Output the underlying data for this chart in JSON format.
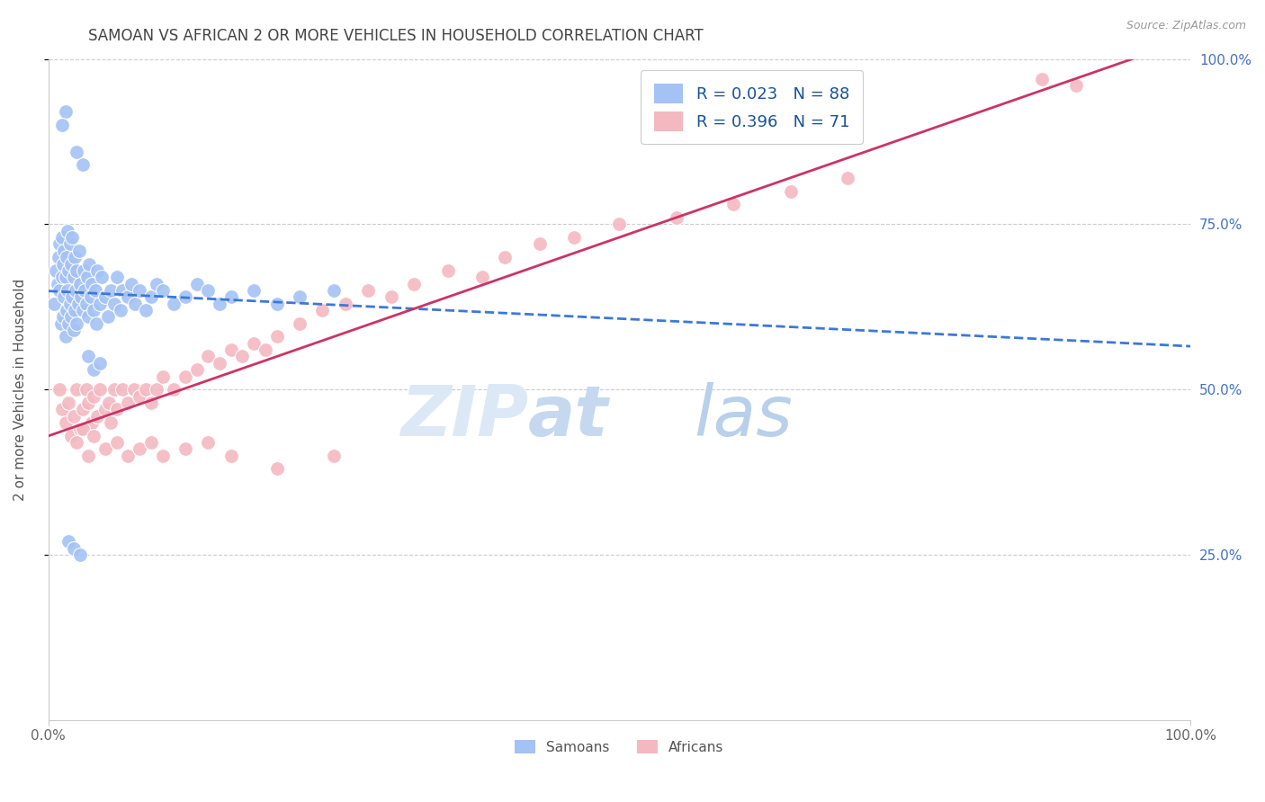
{
  "title": "SAMOAN VS AFRICAN 2 OR MORE VEHICLES IN HOUSEHOLD CORRELATION CHART",
  "source": "Source: ZipAtlas.com",
  "ylabel": "2 or more Vehicles in Household",
  "r_samoan": "0.023",
  "n_samoan": "88",
  "r_african": "0.396",
  "n_african": "71",
  "blue_color": "#a4c2f4",
  "pink_color": "#f4b8c1",
  "blue_line_color": "#3c78d8",
  "pink_line_color": "#cc3366",
  "legend_text_color": "#1a5296",
  "title_color": "#444444",
  "grid_color": "#cccccc",
  "background_color": "#ffffff",
  "xlim": [
    0,
    1
  ],
  "ylim": [
    0,
    1
  ],
  "samoan_x": [
    0.005,
    0.007,
    0.008,
    0.009,
    0.01,
    0.01,
    0.011,
    0.012,
    0.012,
    0.013,
    0.013,
    0.014,
    0.014,
    0.015,
    0.015,
    0.016,
    0.016,
    0.017,
    0.017,
    0.018,
    0.018,
    0.019,
    0.019,
    0.02,
    0.02,
    0.021,
    0.021,
    0.022,
    0.022,
    0.023,
    0.023,
    0.024,
    0.025,
    0.025,
    0.026,
    0.027,
    0.028,
    0.029,
    0.03,
    0.031,
    0.032,
    0.033,
    0.034,
    0.035,
    0.036,
    0.037,
    0.038,
    0.04,
    0.041,
    0.042,
    0.043,
    0.045,
    0.047,
    0.05,
    0.052,
    0.055,
    0.058,
    0.06,
    0.063,
    0.065,
    0.07,
    0.073,
    0.076,
    0.08,
    0.085,
    0.09,
    0.095,
    0.1,
    0.11,
    0.12,
    0.13,
    0.14,
    0.15,
    0.16,
    0.18,
    0.2,
    0.22,
    0.25,
    0.03,
    0.025,
    0.035,
    0.04,
    0.045,
    0.018,
    0.022,
    0.028,
    0.015,
    0.012
  ],
  "samoan_y": [
    0.63,
    0.68,
    0.66,
    0.7,
    0.65,
    0.72,
    0.6,
    0.67,
    0.73,
    0.61,
    0.69,
    0.64,
    0.71,
    0.58,
    0.67,
    0.62,
    0.7,
    0.65,
    0.74,
    0.6,
    0.68,
    0.63,
    0.72,
    0.61,
    0.69,
    0.64,
    0.73,
    0.59,
    0.67,
    0.62,
    0.7,
    0.65,
    0.6,
    0.68,
    0.63,
    0.71,
    0.66,
    0.64,
    0.62,
    0.68,
    0.65,
    0.63,
    0.67,
    0.61,
    0.69,
    0.64,
    0.66,
    0.62,
    0.65,
    0.6,
    0.68,
    0.63,
    0.67,
    0.64,
    0.61,
    0.65,
    0.63,
    0.67,
    0.62,
    0.65,
    0.64,
    0.66,
    0.63,
    0.65,
    0.62,
    0.64,
    0.66,
    0.65,
    0.63,
    0.64,
    0.66,
    0.65,
    0.63,
    0.64,
    0.65,
    0.63,
    0.64,
    0.65,
    0.84,
    0.86,
    0.55,
    0.53,
    0.54,
    0.27,
    0.26,
    0.25,
    0.92,
    0.9
  ],
  "african_x": [
    0.01,
    0.012,
    0.015,
    0.018,
    0.02,
    0.022,
    0.025,
    0.028,
    0.03,
    0.033,
    0.035,
    0.038,
    0.04,
    0.043,
    0.045,
    0.05,
    0.053,
    0.055,
    0.058,
    0.06,
    0.065,
    0.07,
    0.075,
    0.08,
    0.085,
    0.09,
    0.095,
    0.1,
    0.11,
    0.12,
    0.13,
    0.14,
    0.15,
    0.16,
    0.17,
    0.18,
    0.19,
    0.2,
    0.22,
    0.24,
    0.26,
    0.28,
    0.3,
    0.32,
    0.35,
    0.38,
    0.4,
    0.43,
    0.46,
    0.5,
    0.55,
    0.6,
    0.65,
    0.7,
    0.025,
    0.03,
    0.035,
    0.04,
    0.05,
    0.06,
    0.07,
    0.08,
    0.09,
    0.1,
    0.12,
    0.14,
    0.16,
    0.2,
    0.25,
    0.9,
    0.87
  ],
  "african_y": [
    0.5,
    0.47,
    0.45,
    0.48,
    0.43,
    0.46,
    0.5,
    0.44,
    0.47,
    0.5,
    0.48,
    0.45,
    0.49,
    0.46,
    0.5,
    0.47,
    0.48,
    0.45,
    0.5,
    0.47,
    0.5,
    0.48,
    0.5,
    0.49,
    0.5,
    0.48,
    0.5,
    0.52,
    0.5,
    0.52,
    0.53,
    0.55,
    0.54,
    0.56,
    0.55,
    0.57,
    0.56,
    0.58,
    0.6,
    0.62,
    0.63,
    0.65,
    0.64,
    0.66,
    0.68,
    0.67,
    0.7,
    0.72,
    0.73,
    0.75,
    0.76,
    0.78,
    0.8,
    0.82,
    0.42,
    0.44,
    0.4,
    0.43,
    0.41,
    0.42,
    0.4,
    0.41,
    0.42,
    0.4,
    0.41,
    0.42,
    0.4,
    0.38,
    0.4,
    0.96,
    0.97
  ]
}
